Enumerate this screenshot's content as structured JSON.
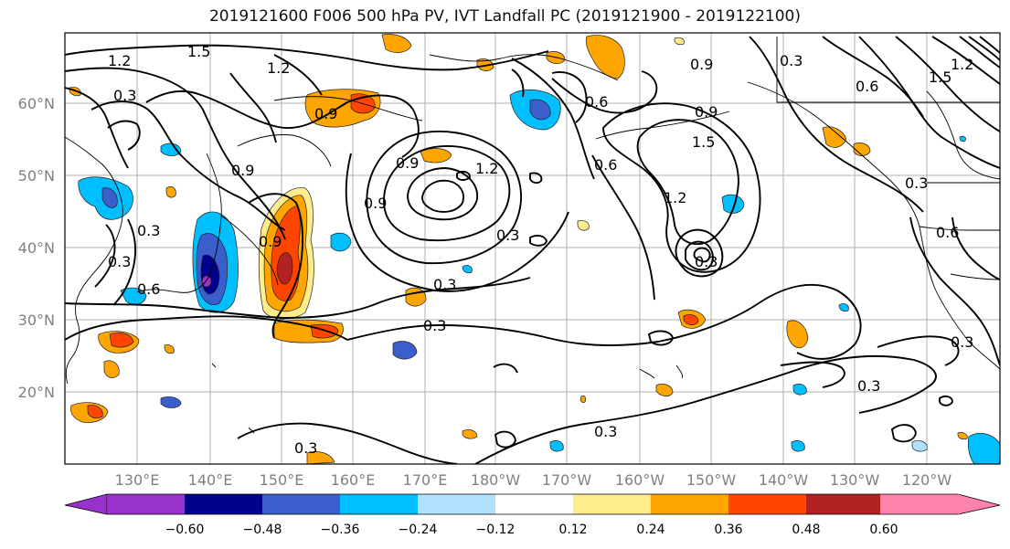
{
  "title": "2019121600 F006 500 hPa PV, IVT Landfall PC (2019121900 - 2019122100)",
  "lat_labels": [
    "60°N",
    "50°N",
    "40°N",
    "30°N",
    "20°N"
  ],
  "lon_labels": [
    "130°E",
    "140°E",
    "150°E",
    "160°E",
    "170°E",
    "180°W",
    "170°W",
    "160°W",
    "150°W",
    "140°W",
    "130°W",
    "120°W"
  ],
  "contour_labels": [
    "1.2",
    "1.5",
    "1.2",
    "0.9",
    "0.9",
    "0.9",
    "0.9",
    "0.6",
    "0.9",
    "1.5",
    "1.2",
    "0.9",
    "0.3",
    "0.6",
    "0.3",
    "0.3",
    "0.9",
    "1.2",
    "0.6",
    "0.3",
    "0.3",
    "0.3",
    "0.3",
    "0.3",
    "0.6",
    "0.3",
    "1.5",
    "1.2",
    "0.3",
    "0.6",
    "0.3",
    "0.3",
    "0.3"
  ],
  "colorbar": {
    "ticks": [
      "−0.60",
      "−0.48",
      "−0.36",
      "−0.24",
      "−0.12",
      "0.12",
      "0.24",
      "0.36",
      "0.48",
      "0.60"
    ],
    "colors": [
      "#9932cc",
      "#00008b",
      "#3a5fcd",
      "#00bfff",
      "#b0e2ff",
      "#ffffff",
      "#ffec8b",
      "#ffa500",
      "#ff4500",
      "#b22222",
      "#ff82ab"
    ]
  }
}
